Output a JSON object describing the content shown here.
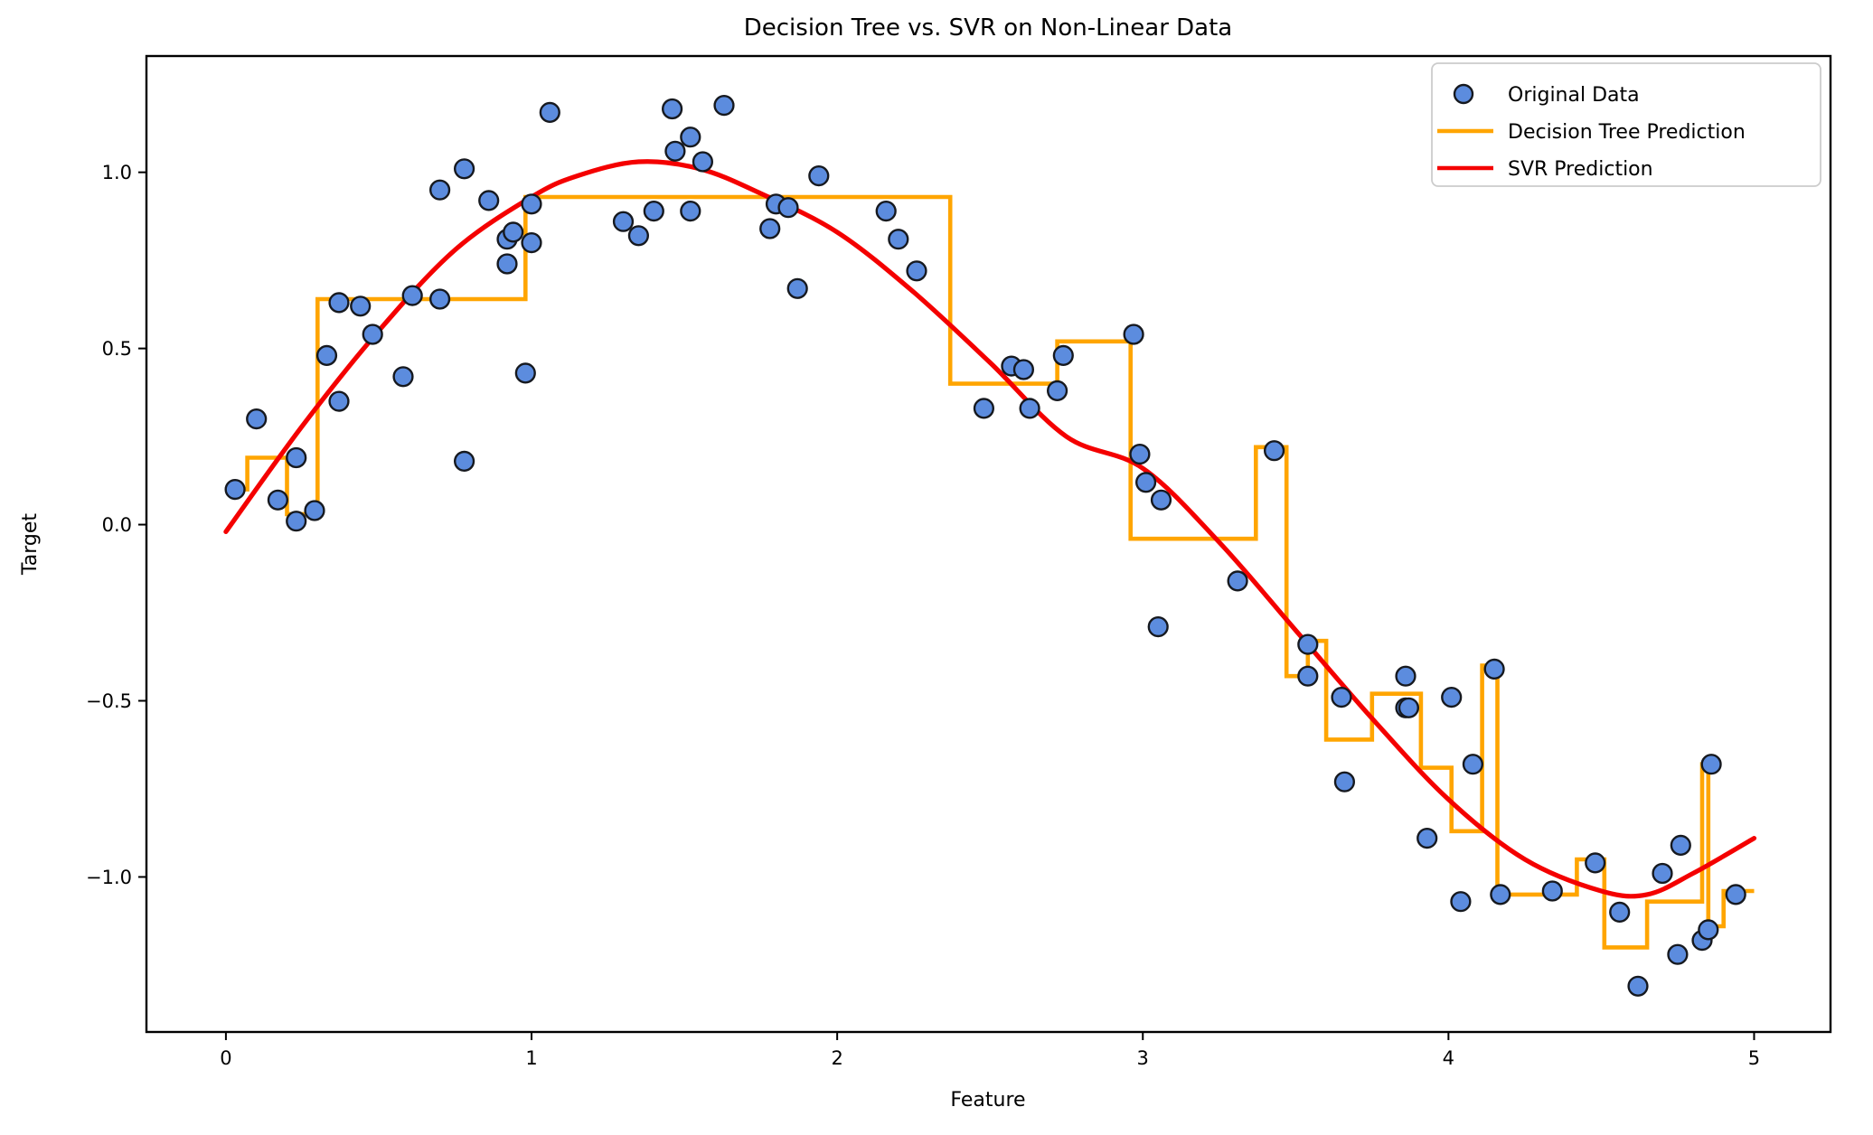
{
  "figure": {
    "background": "#ffffff",
    "axes_color": "#000000"
  },
  "chart_data": {
    "type": "scatter",
    "title": "Decision Tree vs. SVR on Non-Linear Data",
    "xlabel": "Feature",
    "ylabel": "Target",
    "xlim": [
      -0.26,
      5.25
    ],
    "ylim": [
      -1.44,
      1.33
    ],
    "grid": false,
    "legend_position": "upper right",
    "xticks": {
      "values": [
        0,
        1,
        2,
        3,
        4,
        5
      ],
      "labels": [
        "0",
        "1",
        "2",
        "3",
        "4",
        "5"
      ]
    },
    "yticks": {
      "values": [
        1.0,
        0.5,
        0.0,
        -0.5,
        -1.0
      ],
      "labels": [
        "1.0",
        "0.5",
        "0.0",
        "−0.5",
        "−1.0"
      ]
    },
    "series": [
      {
        "name": "Original Data",
        "kind": "scatter",
        "color": "#5c8cde",
        "edge_color": "#16191f",
        "points": [
          [
            0.03,
            0.1
          ],
          [
            0.1,
            0.3
          ],
          [
            0.17,
            0.07
          ],
          [
            0.23,
            0.19
          ],
          [
            0.23,
            0.01
          ],
          [
            0.29,
            0.04
          ],
          [
            0.33,
            0.48
          ],
          [
            0.37,
            0.63
          ],
          [
            0.37,
            0.35
          ],
          [
            0.44,
            0.62
          ],
          [
            0.48,
            0.54
          ],
          [
            0.58,
            0.42
          ],
          [
            0.61,
            0.65
          ],
          [
            0.7,
            0.95
          ],
          [
            0.7,
            0.64
          ],
          [
            0.78,
            1.01
          ],
          [
            0.78,
            0.18
          ],
          [
            0.86,
            0.92
          ],
          [
            0.92,
            0.81
          ],
          [
            0.92,
            0.74
          ],
          [
            0.94,
            0.83
          ],
          [
            0.98,
            0.43
          ],
          [
            1.0,
            0.91
          ],
          [
            1.0,
            0.8
          ],
          [
            1.06,
            1.17
          ],
          [
            1.3,
            0.86
          ],
          [
            1.35,
            0.82
          ],
          [
            1.4,
            0.89
          ],
          [
            1.46,
            1.18
          ],
          [
            1.47,
            1.06
          ],
          [
            1.52,
            1.1
          ],
          [
            1.52,
            0.89
          ],
          [
            1.56,
            1.03
          ],
          [
            1.63,
            1.19
          ],
          [
            1.78,
            0.84
          ],
          [
            1.8,
            0.91
          ],
          [
            1.84,
            0.9
          ],
          [
            1.87,
            0.67
          ],
          [
            1.94,
            0.99
          ],
          [
            2.16,
            0.89
          ],
          [
            2.2,
            0.81
          ],
          [
            2.26,
            0.72
          ],
          [
            2.48,
            0.33
          ],
          [
            2.57,
            0.45
          ],
          [
            2.61,
            0.44
          ],
          [
            2.63,
            0.33
          ],
          [
            2.72,
            0.38
          ],
          [
            2.74,
            0.48
          ],
          [
            2.97,
            0.54
          ],
          [
            2.99,
            0.2
          ],
          [
            3.01,
            0.12
          ],
          [
            3.05,
            -0.29
          ],
          [
            3.06,
            0.07
          ],
          [
            3.31,
            -0.16
          ],
          [
            3.43,
            0.21
          ],
          [
            3.54,
            -0.34
          ],
          [
            3.54,
            -0.43
          ],
          [
            3.65,
            -0.49
          ],
          [
            3.66,
            -0.73
          ],
          [
            3.86,
            -0.43
          ],
          [
            3.86,
            -0.52
          ],
          [
            3.87,
            -0.52
          ],
          [
            3.93,
            -0.89
          ],
          [
            4.01,
            -0.49
          ],
          [
            4.04,
            -1.07
          ],
          [
            4.08,
            -0.68
          ],
          [
            4.15,
            -0.41
          ],
          [
            4.17,
            -1.05
          ],
          [
            4.34,
            -1.04
          ],
          [
            4.48,
            -0.96
          ],
          [
            4.56,
            -1.1
          ],
          [
            4.62,
            -1.31
          ],
          [
            4.7,
            -0.99
          ],
          [
            4.75,
            -1.22
          ],
          [
            4.76,
            -0.91
          ],
          [
            4.83,
            -1.18
          ],
          [
            4.85,
            -1.15
          ],
          [
            4.86,
            -0.68
          ],
          [
            4.94,
            -1.05
          ]
        ]
      },
      {
        "name": "Decision Tree Prediction",
        "kind": "step",
        "color": "#ffa500",
        "segments": [
          [
            0.0,
            0.07,
            0.1
          ],
          [
            0.07,
            0.2,
            0.19
          ],
          [
            0.2,
            0.27,
            0.03
          ],
          [
            0.27,
            0.3,
            0.05
          ],
          [
            0.3,
            0.98,
            0.64
          ],
          [
            0.98,
            2.37,
            0.93
          ],
          [
            2.37,
            2.72,
            0.4
          ],
          [
            2.72,
            2.96,
            0.52
          ],
          [
            2.96,
            3.37,
            -0.04
          ],
          [
            3.37,
            3.47,
            0.22
          ],
          [
            3.47,
            3.54,
            -0.43
          ],
          [
            3.54,
            3.6,
            -0.33
          ],
          [
            3.6,
            3.75,
            -0.61
          ],
          [
            3.75,
            3.91,
            -0.48
          ],
          [
            3.91,
            4.01,
            -0.69
          ],
          [
            4.01,
            4.11,
            -0.87
          ],
          [
            4.11,
            4.16,
            -0.4
          ],
          [
            4.16,
            4.42,
            -1.05
          ],
          [
            4.42,
            4.51,
            -0.95
          ],
          [
            4.51,
            4.65,
            -1.2
          ],
          [
            4.65,
            4.83,
            -1.07
          ],
          [
            4.83,
            4.85,
            -0.68
          ],
          [
            4.85,
            4.9,
            -1.14
          ],
          [
            4.9,
            5.0,
            -1.04
          ]
        ]
      },
      {
        "name": "SVR Prediction",
        "kind": "line",
        "color": "#f40000",
        "points": [
          [
            0.0,
            -0.02
          ],
          [
            0.25,
            0.28
          ],
          [
            0.5,
            0.55
          ],
          [
            0.75,
            0.78
          ],
          [
            1.0,
            0.93
          ],
          [
            1.15,
            0.99
          ],
          [
            1.35,
            1.03
          ],
          [
            1.55,
            1.01
          ],
          [
            1.75,
            0.94
          ],
          [
            2.0,
            0.83
          ],
          [
            2.25,
            0.66
          ],
          [
            2.5,
            0.46
          ],
          [
            2.75,
            0.25
          ],
          [
            3.0,
            0.16
          ],
          [
            3.25,
            -0.05
          ],
          [
            3.5,
            -0.3
          ],
          [
            3.75,
            -0.55
          ],
          [
            4.0,
            -0.78
          ],
          [
            4.25,
            -0.95
          ],
          [
            4.5,
            -1.04
          ],
          [
            4.65,
            -1.05
          ],
          [
            4.8,
            -0.99
          ],
          [
            5.0,
            -0.89
          ]
        ]
      }
    ]
  }
}
